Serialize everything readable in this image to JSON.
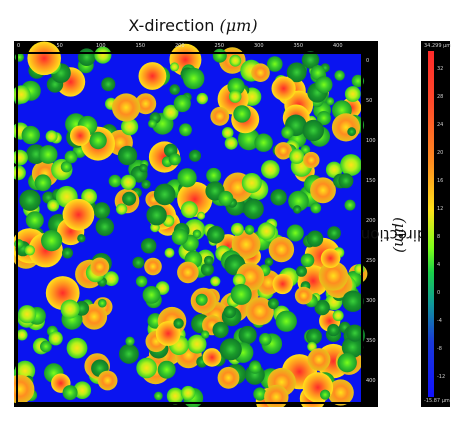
{
  "title_text": "X-direction ",
  "title_unit": "(μm)",
  "y_title_text": "Y-direction ",
  "y_title_unit": "(μm)",
  "x_ticks": [
    "0",
    "50",
    "100",
    "150",
    "200",
    "250",
    "300",
    "350",
    "400"
  ],
  "y_ticks": [
    "0",
    "50",
    "100",
    "150",
    "200",
    "250",
    "300",
    "350",
    "400"
  ],
  "colorbar": {
    "max_label": "34.299 μm",
    "min_label": "-15.87 μm",
    "ticks": [
      "32",
      "28",
      "24",
      "20",
      "16",
      "12",
      "8",
      "4",
      "0",
      "-4",
      "-8",
      "-12"
    ]
  },
  "colors": {
    "background": "#0a14f0",
    "low": "#1a9a2a",
    "mid": "#7cff1a",
    "high_yellow": "#ffe21a",
    "high_orange": "#ff8c20",
    "peak_red": "#ff2a2a"
  }
}
